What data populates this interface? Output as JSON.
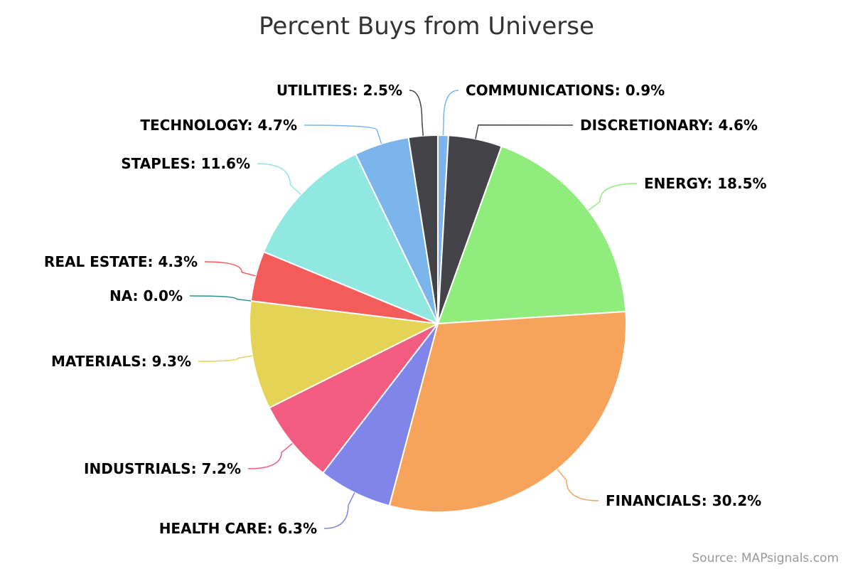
{
  "chart_data": {
    "type": "pie",
    "title": "Percent Buys from Universe",
    "credit": "Source: MAPsignals.com",
    "label_format": "{name}: {value}%",
    "slices": [
      {
        "name": "COMMUNICATIONS",
        "value": 0.9,
        "color": "#7cb5ec"
      },
      {
        "name": "DISCRETIONARY",
        "value": 4.6,
        "color": "#434348"
      },
      {
        "name": "ENERGY",
        "value": 18.5,
        "color": "#90ed7d"
      },
      {
        "name": "FINANCIALS",
        "value": 30.2,
        "color": "#f7a35c"
      },
      {
        "name": "HEALTH CARE",
        "value": 6.3,
        "color": "#8085e9"
      },
      {
        "name": "INDUSTRIALS",
        "value": 7.2,
        "color": "#f15c80"
      },
      {
        "name": "MATERIALS",
        "value": 9.3,
        "color": "#e4d354"
      },
      {
        "name": "NA",
        "value": 0.0,
        "color": "#2b908f"
      },
      {
        "name": "REAL ESTATE",
        "value": 4.3,
        "color": "#f45b5b"
      },
      {
        "name": "STAPLES",
        "value": 11.6,
        "color": "#91e8e1"
      },
      {
        "name": "TECHNOLOGY",
        "value": 4.7,
        "color": "#7cb5ec"
      },
      {
        "name": "UTILITIES",
        "value": 2.5,
        "color": "#434348"
      }
    ]
  }
}
